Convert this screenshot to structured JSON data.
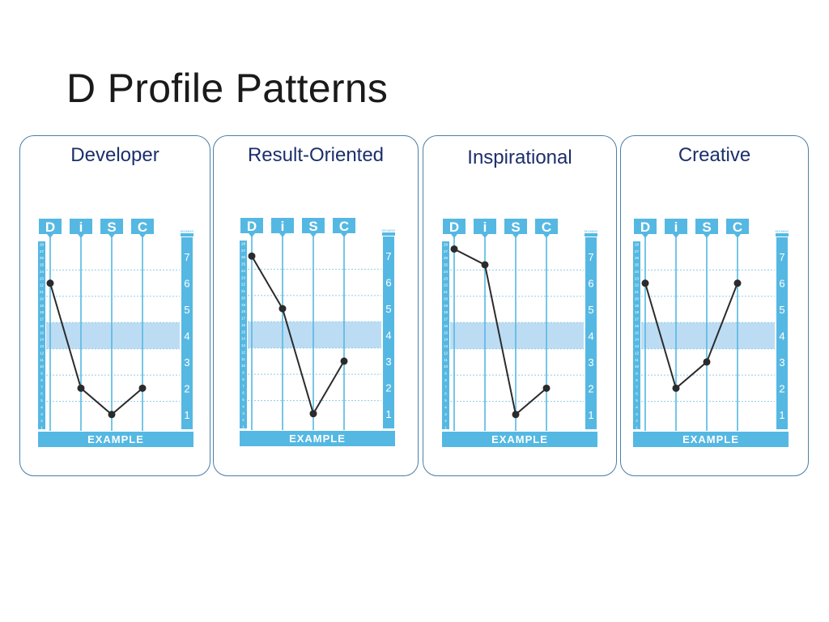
{
  "slide": {
    "title": "D Profile Patterns"
  },
  "colors": {
    "accent": "#55b8e2",
    "band": "#bcdcf3",
    "line": "#2b2b2b",
    "card_border": "#4a7ea9",
    "card_title": "#1c2f6b"
  },
  "chart_common": {
    "column_headers": [
      "D",
      "i",
      "S",
      "C"
    ],
    "segment_header": "SEGMENT",
    "segment_ticks": [
      "7",
      "6",
      "5",
      "4",
      "3",
      "2",
      "1"
    ],
    "left_ticks": [
      "28",
      "27",
      "26",
      "25",
      "24",
      "23",
      "22",
      "21",
      "20",
      "19",
      "18",
      "17",
      "16",
      "15",
      "14",
      "13",
      "12",
      "11",
      "10",
      "9",
      "8",
      "7",
      "6",
      "5",
      "4",
      "3",
      "2",
      "1"
    ],
    "footer_label": "EXAMPLE"
  },
  "chart_data": [
    {
      "type": "line",
      "title": "Developer",
      "categories": [
        "D",
        "i",
        "S",
        "C"
      ],
      "values": [
        6,
        2,
        1,
        2
      ],
      "ylim": [
        0.5,
        7.5
      ],
      "band": [
        3.5,
        4.5
      ]
    },
    {
      "type": "line",
      "title": "Result-Oriented",
      "categories": [
        "D",
        "i",
        "S",
        "C"
      ],
      "values": [
        7,
        5,
        1,
        3
      ],
      "ylim": [
        0.5,
        7.5
      ],
      "band": [
        3.5,
        4.5
      ]
    },
    {
      "type": "line",
      "title": "Inspirational",
      "categories": [
        "D",
        "i",
        "S",
        "C"
      ],
      "values": [
        7.3,
        6.7,
        1,
        2
      ],
      "ylim": [
        0.5,
        7.5
      ],
      "band": [
        3.5,
        4.5
      ]
    },
    {
      "type": "line",
      "title": "Creative",
      "categories": [
        "D",
        "i",
        "S",
        "C"
      ],
      "values": [
        6,
        2,
        3,
        6
      ],
      "ylim": [
        0.5,
        7.5
      ],
      "band": [
        3.5,
        4.5
      ]
    }
  ]
}
